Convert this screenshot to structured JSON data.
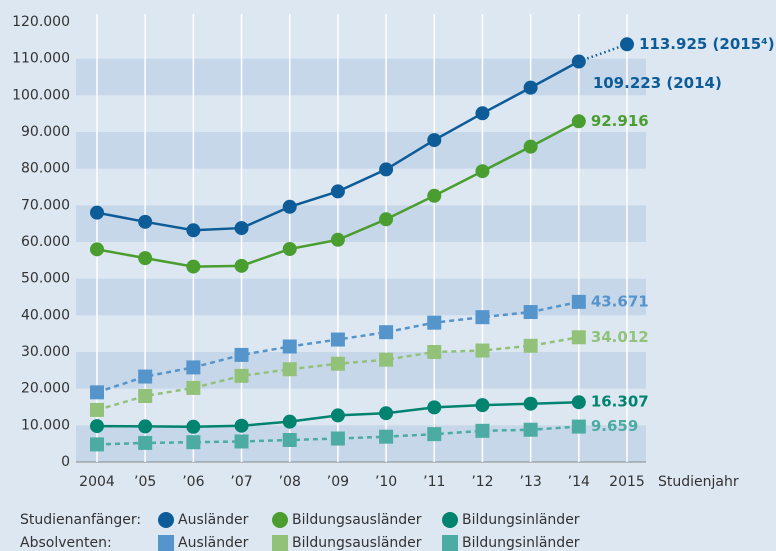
{
  "chart_data": {
    "type": "line",
    "categories": [
      "2004",
      "’05",
      "’06",
      "’07",
      "’08",
      "’09",
      "’10",
      "’11",
      "’12",
      "’13",
      "’14",
      "2015"
    ],
    "x_label": "Studienjahr",
    "ylim": [
      0,
      120000
    ],
    "yticks": [
      0,
      {
        "value": 10000,
        "label": "10.000"
      },
      {
        "value": 20000,
        "label": "20.000"
      },
      {
        "value": 30000,
        "label": "30.000"
      },
      {
        "value": 40000,
        "label": "40.000"
      },
      {
        "value": 50000,
        "label": "50.000"
      },
      {
        "value": 60000,
        "label": "60.000"
      },
      {
        "value": 70000,
        "label": "70.000"
      },
      {
        "value": 80000,
        "label": "80.000"
      },
      {
        "value": 90000,
        "label": "90.000"
      },
      {
        "value": 100000,
        "label": "100.000"
      },
      {
        "value": 110000,
        "label": "110.000"
      },
      {
        "value": 120000,
        "label": "120.000"
      }
    ],
    "legend_groups": [
      {
        "marker": "circle",
        "label": "Studienanfänger:"
      },
      {
        "marker": "square",
        "label": "Absolventen:"
      }
    ],
    "series": [
      {
        "name": "Ausländer",
        "color": "#0d5c98",
        "marker": "circle",
        "line_style": "solid",
        "last_segment": "dotted",
        "values": [
          68000,
          65500,
          63200,
          63800,
          69600,
          73800,
          79800,
          87800,
          95100,
          102100,
          109223,
          113925
        ],
        "value_labels": [
          null,
          null,
          null,
          null,
          null,
          null,
          null,
          null,
          null,
          null,
          "109.223 (2014)",
          "113.925 (2015⁴)"
        ]
      },
      {
        "name": "Bildungsausländer",
        "color": "#4a9e2f",
        "marker": "circle",
        "line_style": "solid",
        "values": [
          58000,
          55600,
          53300,
          53500,
          58100,
          60600,
          66200,
          72600,
          79300,
          86000,
          92916,
          null
        ],
        "value_labels": [
          null,
          null,
          null,
          null,
          null,
          null,
          null,
          null,
          null,
          null,
          "92.916",
          null
        ]
      },
      {
        "name": "Bildungsinländer",
        "color": "#00836f",
        "marker": "circle",
        "line_style": "solid",
        "values": [
          9800,
          9700,
          9600,
          9900,
          11000,
          12700,
          13300,
          14900,
          15500,
          15900,
          16307,
          null
        ],
        "value_labels": [
          null,
          null,
          null,
          null,
          null,
          null,
          null,
          null,
          null,
          null,
          "16.307",
          null
        ]
      },
      {
        "name": "Ausländer",
        "color": "#5595cc",
        "marker": "square",
        "line_style": "dashed",
        "values": [
          19000,
          23300,
          25800,
          29200,
          31500,
          33400,
          35400,
          38000,
          39500,
          40900,
          43671,
          null
        ],
        "value_labels": [
          null,
          null,
          null,
          null,
          null,
          null,
          null,
          null,
          null,
          null,
          "43.671",
          null
        ]
      },
      {
        "name": "Bildungsausländer",
        "color": "#92c27a",
        "marker": "square",
        "line_style": "dashed",
        "values": [
          14200,
          18000,
          20200,
          23500,
          25300,
          26800,
          27900,
          30000,
          30400,
          31700,
          34012,
          null
        ],
        "value_labels": [
          null,
          null,
          null,
          null,
          null,
          null,
          null,
          null,
          null,
          null,
          "34.012",
          null
        ]
      },
      {
        "name": "Bildungsinländer",
        "color": "#4cab a3",
        "marker": "square",
        "line_style": "dashed",
        "values": [
          4800,
          5200,
          5400,
          5600,
          6000,
          6400,
          6900,
          7600,
          8500,
          8800,
          9659,
          null
        ],
        "value_labels": [
          null,
          null,
          null,
          null,
          null,
          null,
          null,
          null,
          null,
          null,
          "9.659",
          null
        ]
      }
    ]
  }
}
